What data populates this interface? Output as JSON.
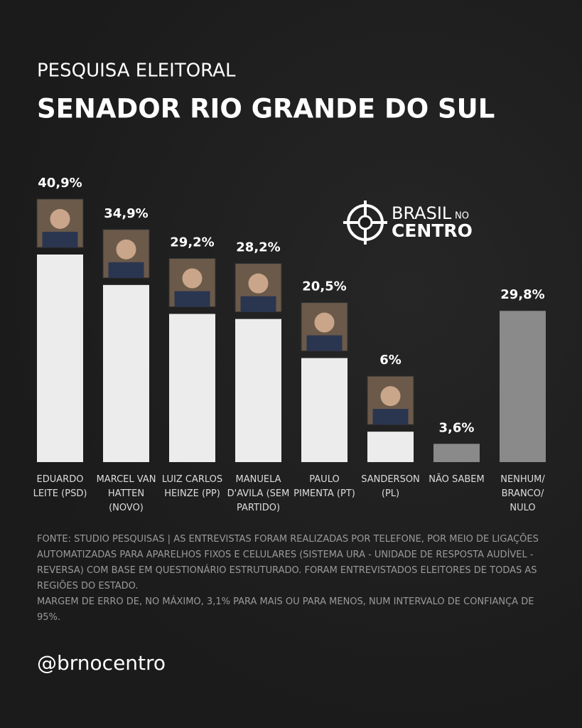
{
  "chart_data": {
    "type": "bar",
    "subtitle": "PESQUISA ELEITORAL",
    "title": "SENADOR RIO GRANDE DO SUL",
    "categories": [
      "EDUARDO LEITE (PSD)",
      "MARCEL VAN HATTEN (NOVO)",
      "LUIZ CARLOS HEINZE (PP)",
      "MANUELA D'AVILA (SEM PARTIDO)",
      "PAULO PIMENTA (PT)",
      "SANDERSON (PL)",
      "NÃO SABEM",
      "NENHUM/ BRANCO/ NULO"
    ],
    "values": [
      40.9,
      34.9,
      29.2,
      28.2,
      20.5,
      6,
      3.6,
      29.8
    ],
    "value_labels": [
      "40,9%",
      "34,9%",
      "29,2%",
      "28,2%",
      "20,5%",
      "6%",
      "3,6%",
      "29,8%"
    ],
    "colors": [
      "#ececec",
      "#ececec",
      "#ececec",
      "#ececec",
      "#ececec",
      "#ececec",
      "#8a8a8a",
      "#8a8a8a"
    ],
    "source": "FONTE: STUDIO PESQUISAS | AS ENTREVISTAS FORAM REALIZADAS POR TELEFONE, POR MEIO DE LIGAÇÕES AUTOMATIZADAS PARA APARELHOS FIXOS E CELULARES (SISTEMA URA - UNIDADE DE RESPOSTA AUDÍVEL - REVERSA) COM BASE EM QUESTIONÁRIO ESTRUTURADO. FORAM ENTREVISTADOS ELEITORES DE TODAS AS REGIÕES DO ESTADO.",
    "margin": "MARGEM DE ERRO DE, NO MÁXIMO, 3,1% PARA MAIS OU PARA MENOS, NUM INTERVALO DE CONFIANÇA DE 95%.",
    "handle": "@brnocentro",
    "logo": [
      "BRASIL",
      "NO",
      "CENTRO"
    ]
  }
}
